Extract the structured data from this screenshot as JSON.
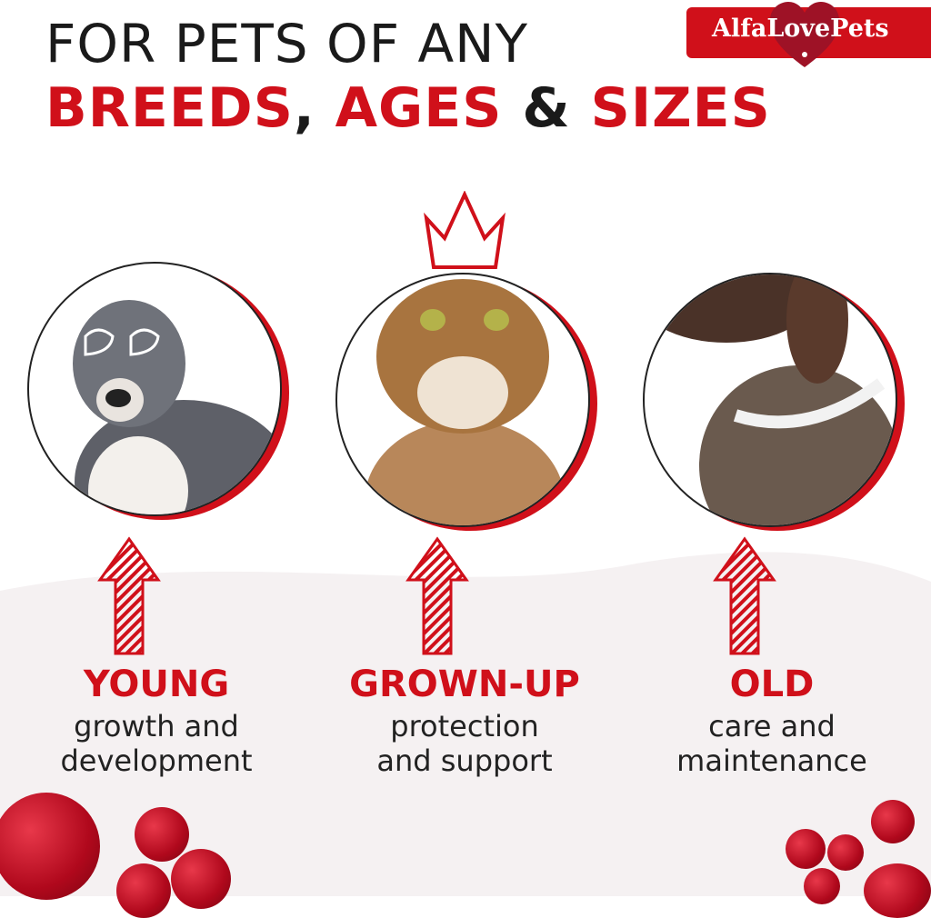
{
  "header": {
    "line1": "FOR PETS OF ANY",
    "line2_word1": "BREEDS",
    "line2_sep1": ", ",
    "line2_word2": "AGES",
    "line2_sep2": " & ",
    "line2_word3": "SIZES"
  },
  "logo": {
    "text": "AlfaLovePets"
  },
  "colors": {
    "accent": "#d0101a",
    "text": "#1a1a1a",
    "wave": "#f5f1f2"
  },
  "stages": [
    {
      "label": "YOUNG",
      "line1": "growth and",
      "line2": "development",
      "animal": "puppy-with-heart-glasses"
    },
    {
      "label": "GROWN-UP",
      "line1": "protection",
      "line2": "and support",
      "animal": "cat-with-crown"
    },
    {
      "label": "OLD",
      "line1": "care and",
      "line2": "maintenance",
      "animal": "senior-dog-with-collar"
    }
  ]
}
